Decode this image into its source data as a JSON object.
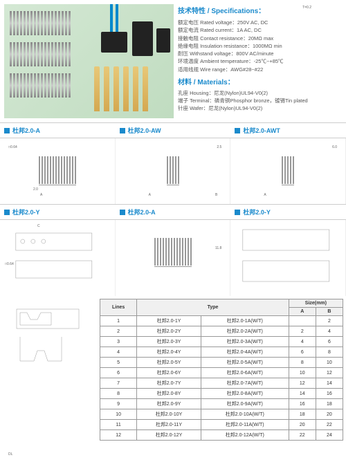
{
  "specs_header": "技术特性 / Specifications：",
  "spec_rows": [
    "额定电压 Rated voltage：250V AC, DC",
    "额定电流 Rated current：1A AC, DC",
    "接触电阻 Contact resistance：20MΩ max",
    "绝缘电阻 Insulation resistance：1000MΩ min",
    "耐压 Withstand voltage：800V AC/minute",
    "环境温度 Ambient temperature：-25℃~+85℃",
    "适用线规 Wire range：AWG#28~#22"
  ],
  "materials_header": "材料 / Materials：",
  "material_rows": [
    "孔座 Housing：尼龙(Nylon)UL94-V0(2)",
    "端子 Terminal：磷青铜Phosphor bronze，镀锡Tin plated",
    "针座 Wafer：尼龙(Nylon)UL94-V0(2)"
  ],
  "headers_row1": [
    "杜邦2.0-A",
    "杜邦2.0-AW",
    "杜邦2.0-AWT"
  ],
  "headers_row2": [
    "杜邦2.0-Y",
    "杜邦2.0-A",
    "杜邦2.0-Y"
  ],
  "dims": {
    "d1": "□0.64",
    "d2": "2.0",
    "d3": "D",
    "d4": "A",
    "d5": "B",
    "d6": "11.8",
    "d7": "2.5",
    "d8": "6.0",
    "d9": "14",
    "d10": "C",
    "d11": "T=0.2",
    "d12": "DL"
  },
  "table": {
    "header_lines": "Lines",
    "header_type": "Type",
    "header_size": "Size(mm)",
    "header_a": "A",
    "header_b": "B",
    "rows": [
      {
        "n": "1",
        "t1": "杜邦2.0-1Y",
        "t2": "杜邦2.0-1A(W/T)",
        "a": "",
        "b": "2"
      },
      {
        "n": "2",
        "t1": "杜邦2.0-2Y",
        "t2": "杜邦2.0-2A(W/T)",
        "a": "2",
        "b": "4"
      },
      {
        "n": "3",
        "t1": "杜邦2.0-3Y",
        "t2": "杜邦2.0-3A(W/T)",
        "a": "4",
        "b": "6"
      },
      {
        "n": "4",
        "t1": "杜邦2.0-4Y",
        "t2": "杜邦2.0-4A(W/T)",
        "a": "6",
        "b": "8"
      },
      {
        "n": "5",
        "t1": "杜邦2.0-5Y",
        "t2": "杜邦2.0-5A(W/T)",
        "a": "8",
        "b": "10"
      },
      {
        "n": "6",
        "t1": "杜邦2.0-6Y",
        "t2": "杜邦2.0-6A(W/T)",
        "a": "10",
        "b": "12"
      },
      {
        "n": "7",
        "t1": "杜邦2.0-7Y",
        "t2": "杜邦2.0-7A(W/T)",
        "a": "12",
        "b": "14"
      },
      {
        "n": "8",
        "t1": "杜邦2.0-8Y",
        "t2": "杜邦2.0-8A(W/T)",
        "a": "14",
        "b": "16"
      },
      {
        "n": "9",
        "t1": "杜邦2.0-9Y",
        "t2": "杜邦2.0-9A(W/T)",
        "a": "16",
        "b": "18"
      },
      {
        "n": "10",
        "t1": "杜邦2.0-10Y",
        "t2": "杜邦2.0-10A(W/T)",
        "a": "18",
        "b": "20"
      },
      {
        "n": "11",
        "t1": "杜邦2.0-11Y",
        "t2": "杜邦2.0-11A(W/T)",
        "a": "20",
        "b": "22"
      },
      {
        "n": "12",
        "t1": "杜邦2.0-12Y",
        "t2": "杜邦2.0-12A(W/T)",
        "a": "22",
        "b": "24"
      }
    ]
  }
}
